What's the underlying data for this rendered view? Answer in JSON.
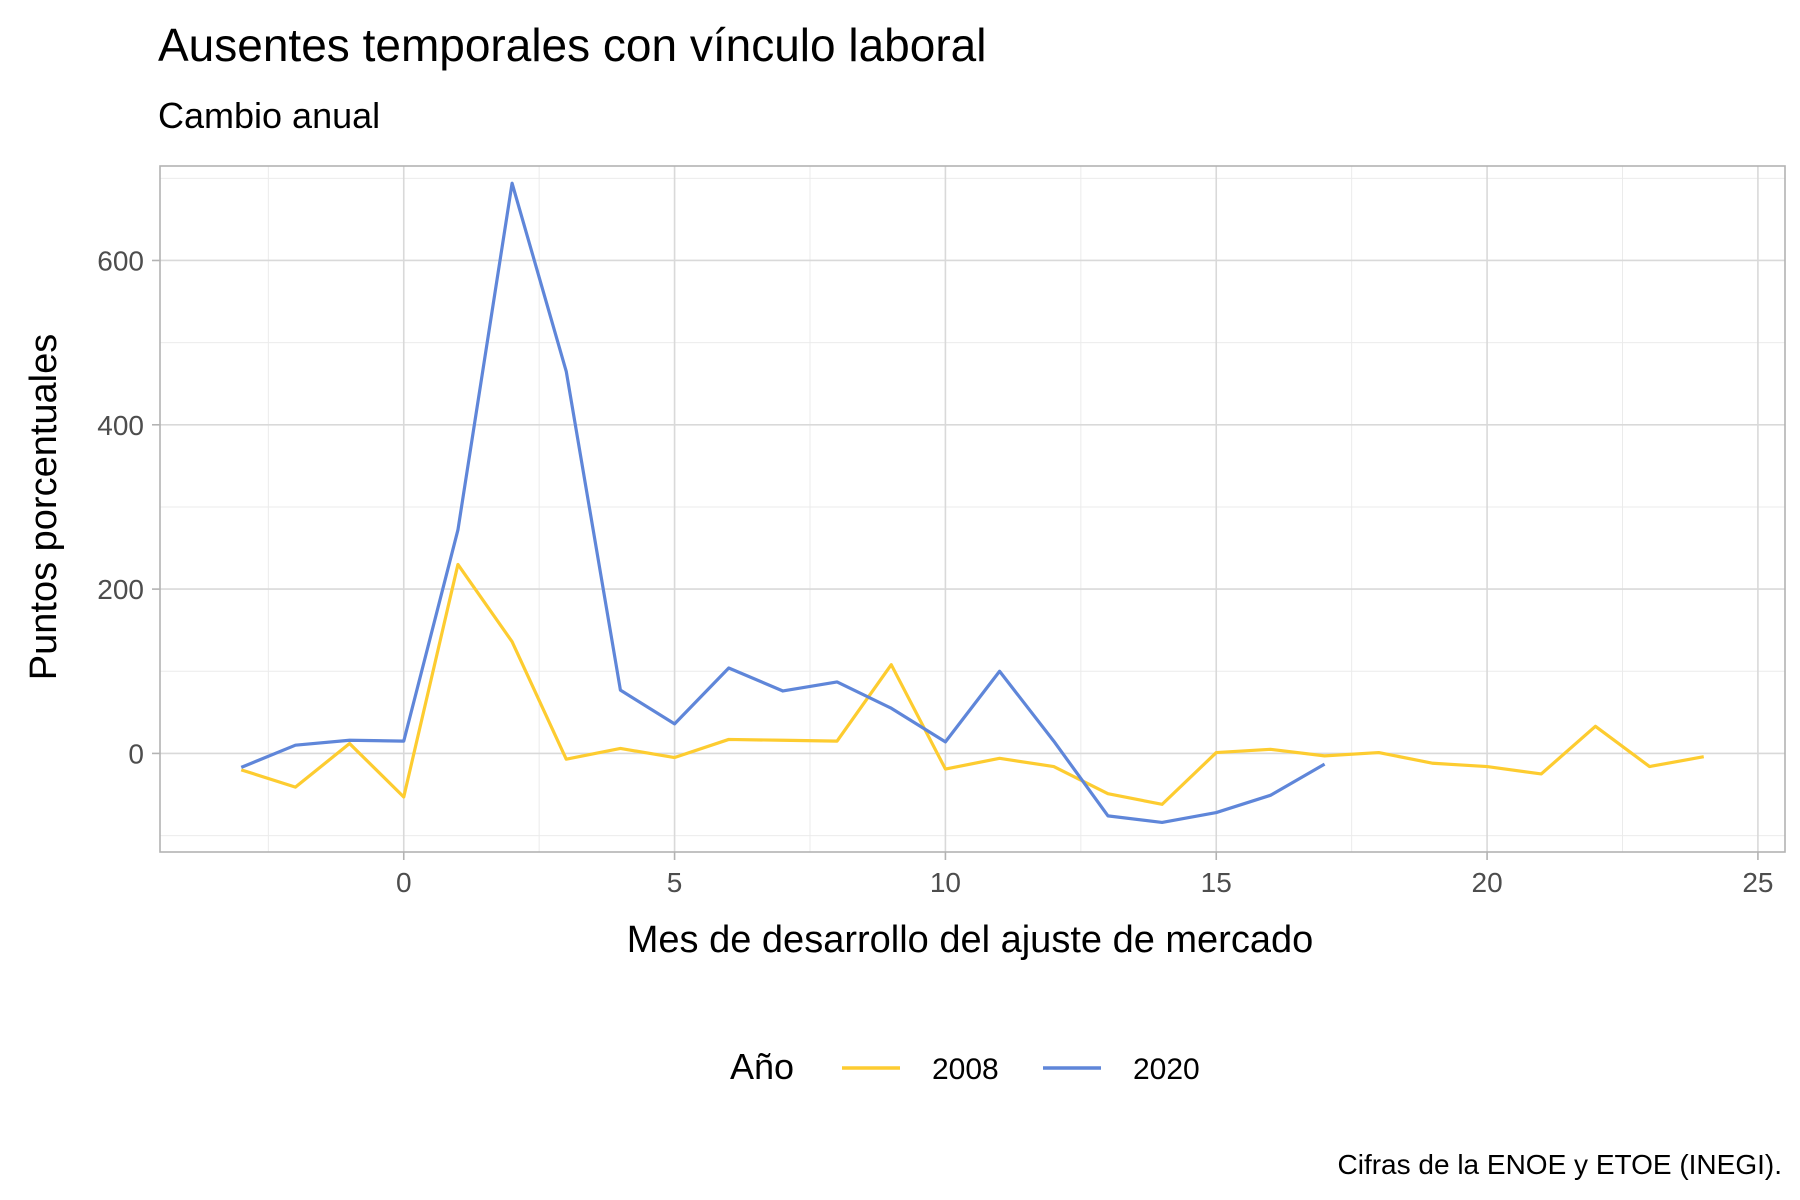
{
  "chart_data": {
    "type": "line",
    "title": "Ausentes temporales con vínculo laboral",
    "subtitle": "Cambio anual",
    "xlabel": "Mes de desarrollo del ajuste de mercado",
    "ylabel": "Puntos porcentuales",
    "caption": "Cifras de la ENOE y ETOE (INEGI).",
    "xlim": [
      -4.5,
      25.5
    ],
    "ylim": [
      -120,
      715
    ],
    "x_ticks": [
      0,
      5,
      10,
      15,
      20,
      25
    ],
    "y_ticks": [
      0,
      200,
      400,
      600
    ],
    "x_minor_ticks": [
      -2.5,
      2.5,
      7.5,
      12.5,
      17.5,
      22.5
    ],
    "y_minor_ticks": [
      -100,
      100,
      300,
      500,
      700
    ],
    "grid": true,
    "legend": {
      "title": "Año",
      "position": "bottom"
    },
    "series": [
      {
        "name": "2008",
        "color": "#fdcc30",
        "x": [
          -3,
          -2,
          -1,
          0,
          1,
          2,
          3,
          4,
          5,
          6,
          7,
          8,
          9,
          10,
          11,
          12,
          13,
          14,
          15,
          16,
          17,
          18,
          19,
          20,
          21,
          22,
          23,
          24
        ],
        "y": [
          -20,
          -41,
          12,
          -53,
          230,
          136,
          -7,
          6,
          -5,
          17,
          16,
          15,
          108,
          -19,
          -6,
          -16,
          -49,
          -62,
          1,
          5,
          -3,
          1,
          -12,
          -16,
          -25,
          33,
          -16,
          -4
        ]
      },
      {
        "name": "2020",
        "color": "#5f86d9",
        "x": [
          -3,
          -2,
          -1,
          0,
          1,
          2,
          3,
          4,
          5,
          6,
          7,
          8,
          9,
          10,
          11,
          12,
          13,
          14,
          15,
          16,
          17
        ],
        "y": [
          -17,
          10,
          16,
          15,
          272,
          694,
          465,
          77,
          36,
          104,
          76,
          87,
          55,
          14,
          100,
          15,
          -76,
          -84,
          -72,
          -51,
          -13
        ]
      }
    ]
  }
}
